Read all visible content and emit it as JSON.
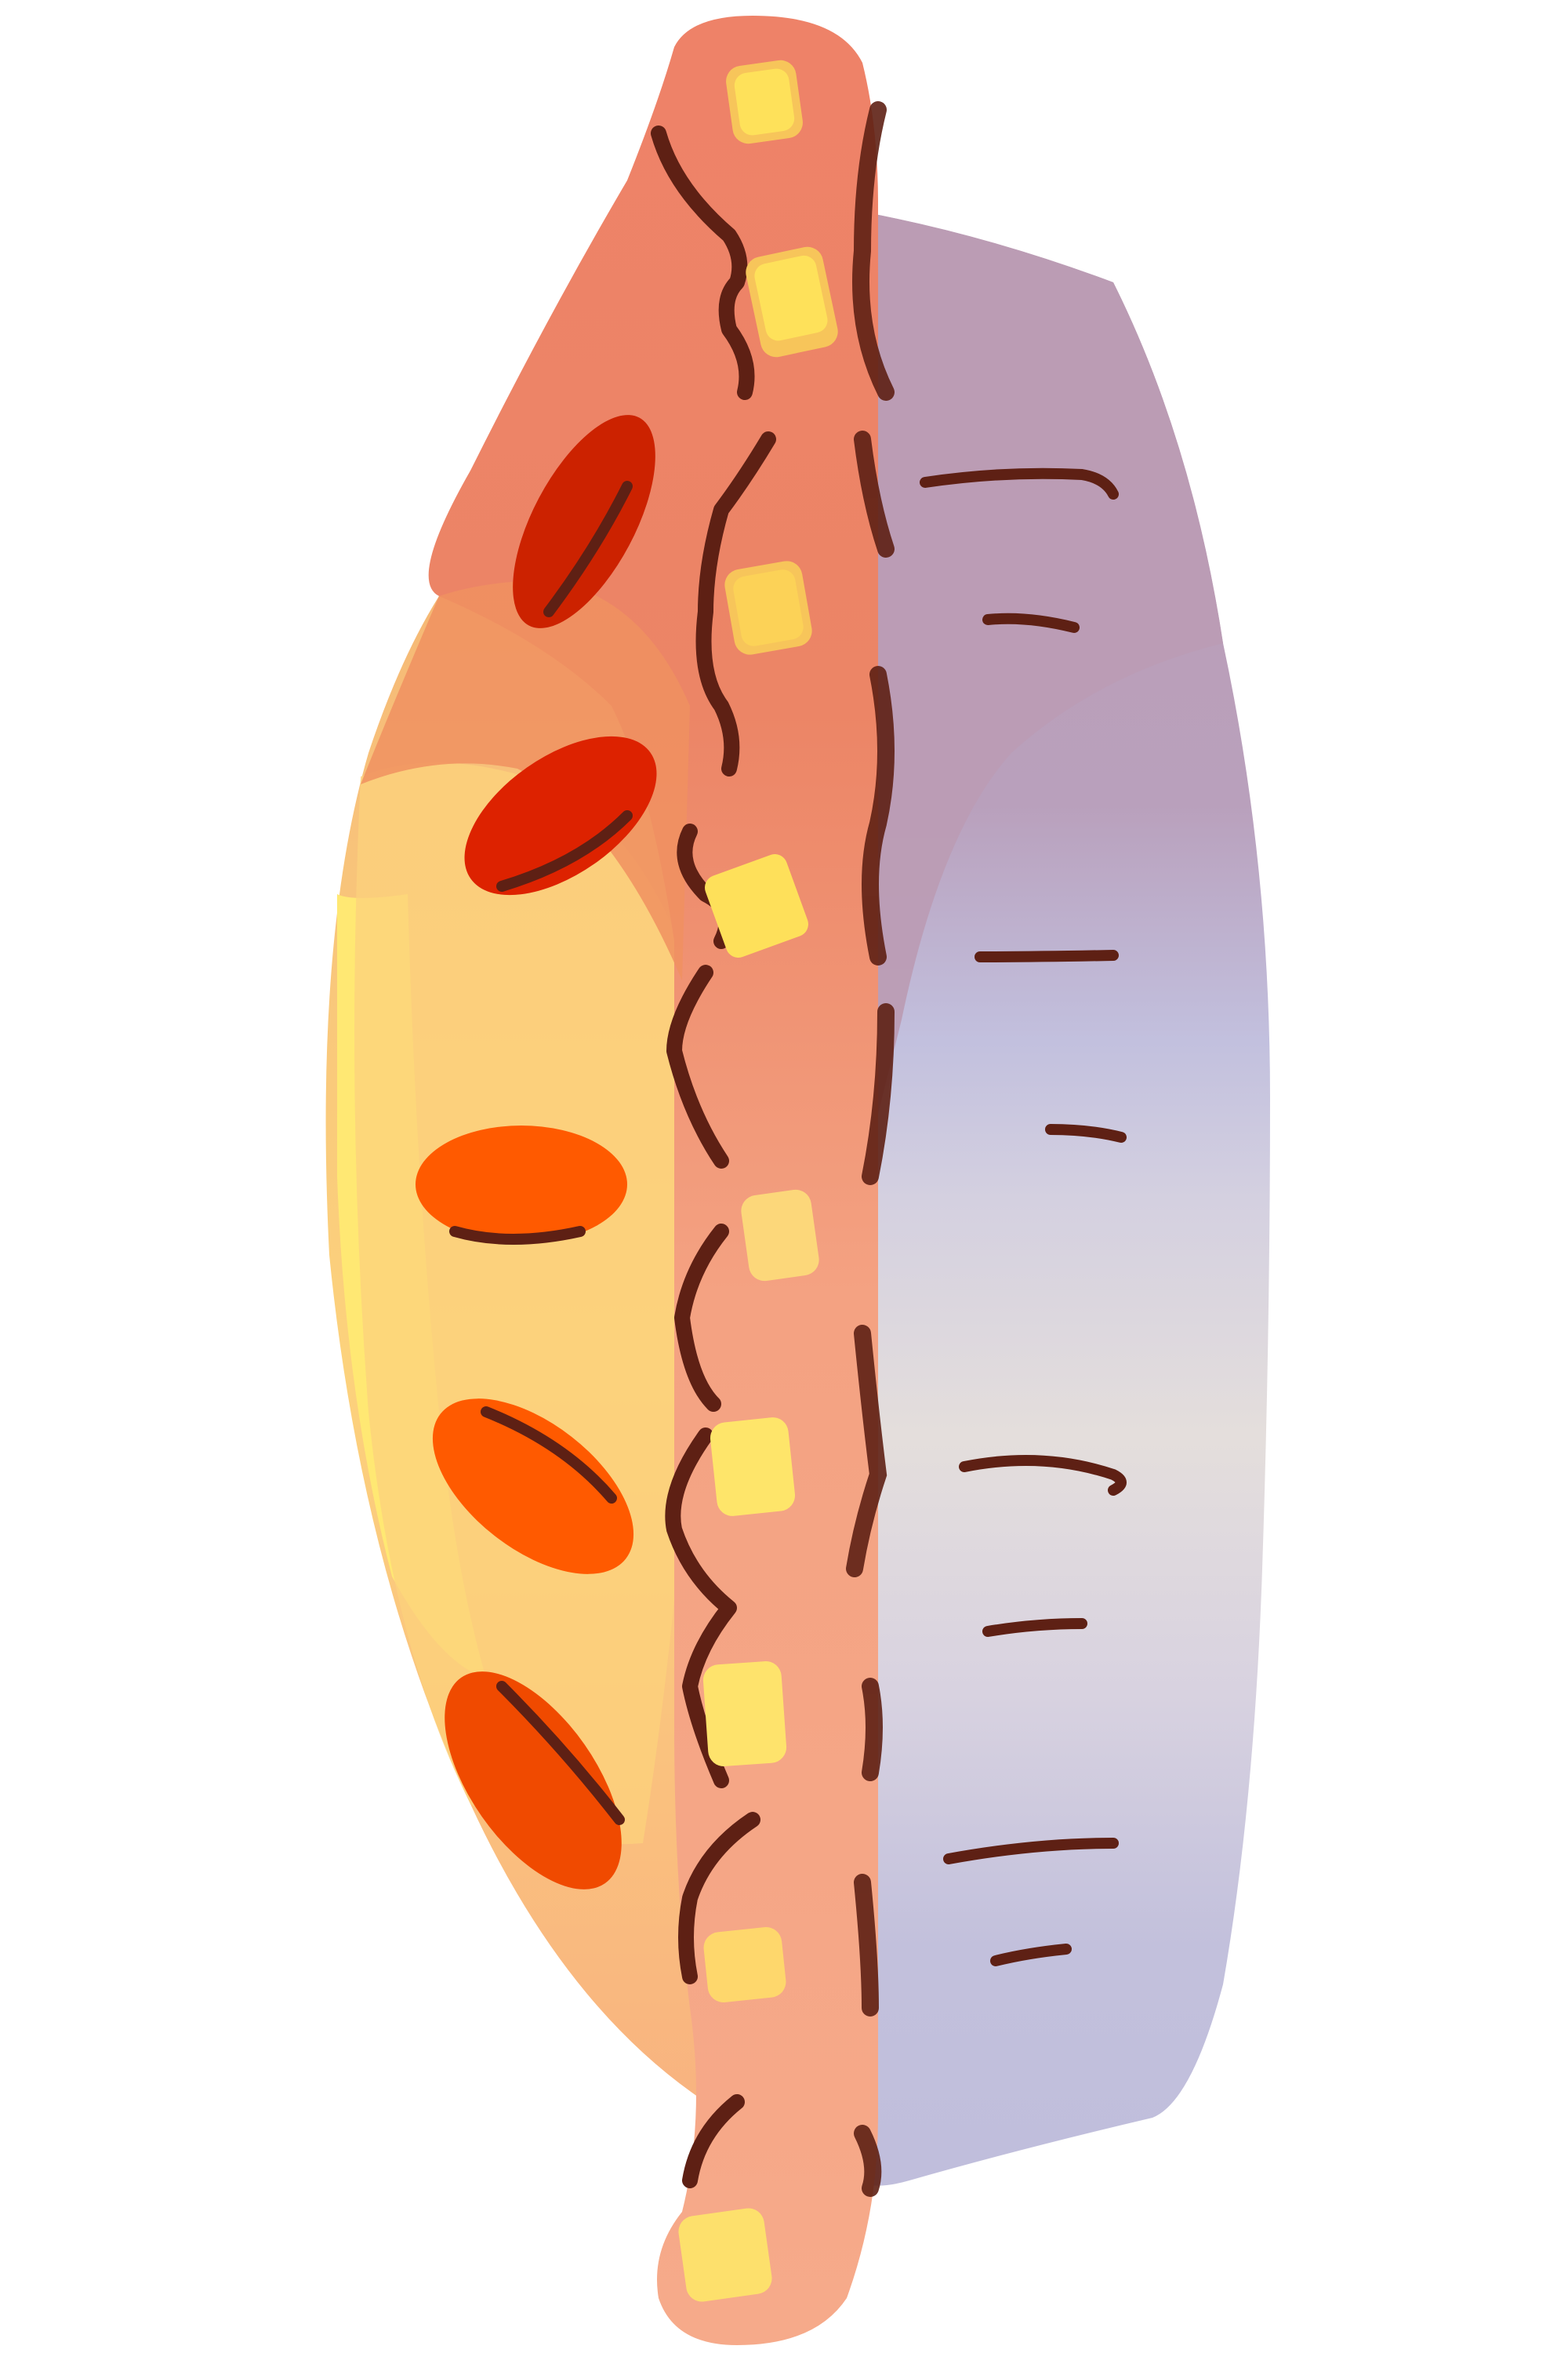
{
  "illustration": {
    "subject": "hot-dog-in-bun-illustration",
    "palette": {
      "background": "#ffffff",
      "sausage_top": "#ee8268",
      "sausage_mid": "#f0a07a",
      "sausage_bottom": "#f6a989",
      "cheese_glaze": "#fcd17c",
      "cheese_highlight": "#ffe873",
      "pepper_red": "#cc2200",
      "pepper_orange": "#ff5a00",
      "corn_yellow": "#fee15a",
      "corn_shadow": "#f7c55a",
      "grill_brown": "#5e2014",
      "bun_top": "#b898ae",
      "bun_lavender": "#c0bedc",
      "bun_light": "#dcd6de",
      "bun_cream": "#e4dcdc"
    }
  }
}
